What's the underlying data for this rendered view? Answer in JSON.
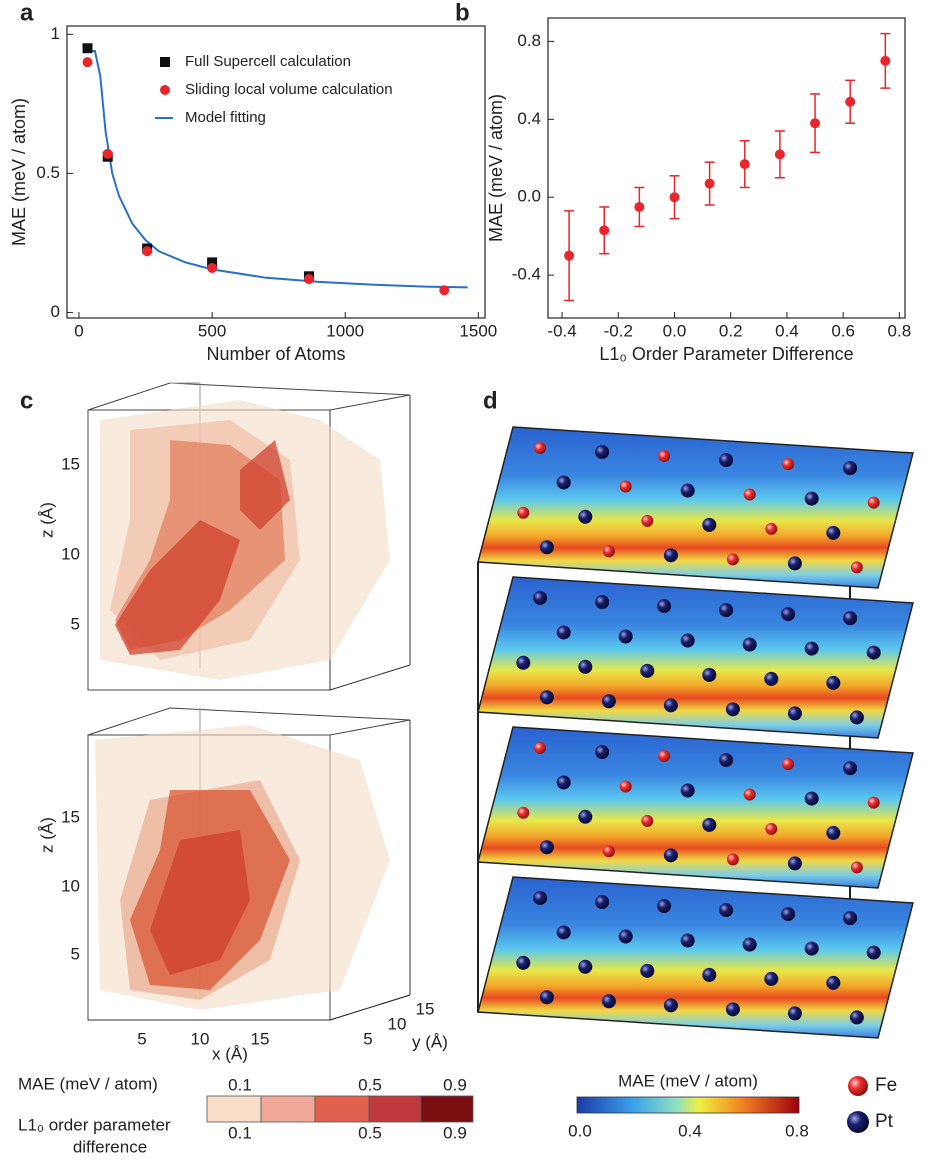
{
  "panel_labels": [
    "a",
    "b",
    "c",
    "d"
  ],
  "chart_data": [
    {
      "type": "scatter",
      "x_label": "Number of Atoms",
      "y_label": "MAE (meV / atom)",
      "xlim": [
        -45,
        1525
      ],
      "ylim": [
        -0.02,
        1.03
      ],
      "xticks": [
        0,
        500,
        1000,
        1500
      ],
      "yticks": [
        0,
        0.5,
        1
      ],
      "legend": "upper center",
      "series": [
        {
          "name": "Full Supercell calculation",
          "color": "#111111",
          "style": "square",
          "x": [
            32,
            108,
            256,
            500,
            864
          ],
          "values": [
            0.95,
            0.56,
            0.23,
            0.18,
            0.13
          ]
        },
        {
          "name": "Sliding local volume calculation",
          "color": "#e8262b",
          "style": "circle",
          "x": [
            32,
            108,
            256,
            500,
            864,
            1372
          ],
          "values": [
            0.9,
            0.57,
            0.22,
            0.16,
            0.12,
            0.08
          ]
        },
        {
          "name": "Model fitting",
          "color": "#2a6fc9",
          "style": "line",
          "x": [
            20,
            60,
            80,
            100,
            125,
            150,
            200,
            250,
            300,
            400,
            500,
            700,
            900,
            1100,
            1300,
            1460
          ],
          "values": [
            0.94,
            0.94,
            0.85,
            0.65,
            0.5,
            0.42,
            0.32,
            0.26,
            0.22,
            0.18,
            0.155,
            0.125,
            0.11,
            0.1,
            0.093,
            0.09
          ]
        }
      ]
    },
    {
      "type": "errorbar",
      "x_label": "L1₀ Order Parameter Difference",
      "y_label": "MAE  (meV / atom)",
      "xlim": [
        -0.45,
        0.82
      ],
      "ylim": [
        -0.62,
        0.92
      ],
      "color": "#e8262b",
      "xticks": [
        -0.4,
        -0.2,
        {
          "value": 0,
          "label": "0.0"
        },
        0.2,
        0.4,
        0.6,
        0.8
      ],
      "yticks": [
        -0.4,
        {
          "value": 0,
          "label": "0.0"
        },
        0.4,
        0.8
      ],
      "x": [
        -0.375,
        -0.25,
        -0.125,
        0,
        0.125,
        0.25,
        0.375,
        0.5,
        0.625,
        0.75
      ],
      "values": [
        -0.3,
        -0.17,
        -0.05,
        0.0,
        0.07,
        0.17,
        0.22,
        0.38,
        0.49,
        0.7
      ],
      "errors": [
        0.23,
        0.12,
        0.1,
        0.11,
        0.11,
        0.12,
        0.12,
        0.15,
        0.11,
        0.14
      ]
    }
  ],
  "panel_c": {
    "z_label": "z (Å)",
    "z_ticks": [
      "15",
      "10",
      "5"
    ],
    "x_label": "x (Å)",
    "x_ticks": [
      "5",
      "10",
      "15"
    ],
    "y_label": "y (Å)",
    "y_ticks": [
      "5",
      "10",
      "15"
    ],
    "mae_label": "MAE  (meV / atom)",
    "mae_ticks": [
      "0.1",
      "0.5",
      "0.9"
    ],
    "order_label": [
      "L1₀ order parameter",
      "difference"
    ],
    "order_ticks": [
      "0.1",
      "0.5",
      "0.9"
    ]
  },
  "panel_d": {
    "colorbar_label": "MAE (meV / atom)",
    "colorbar_ticks": [
      "0.0",
      "0.4",
      "0.8"
    ],
    "legend": [
      "Fe",
      "Pt"
    ]
  }
}
